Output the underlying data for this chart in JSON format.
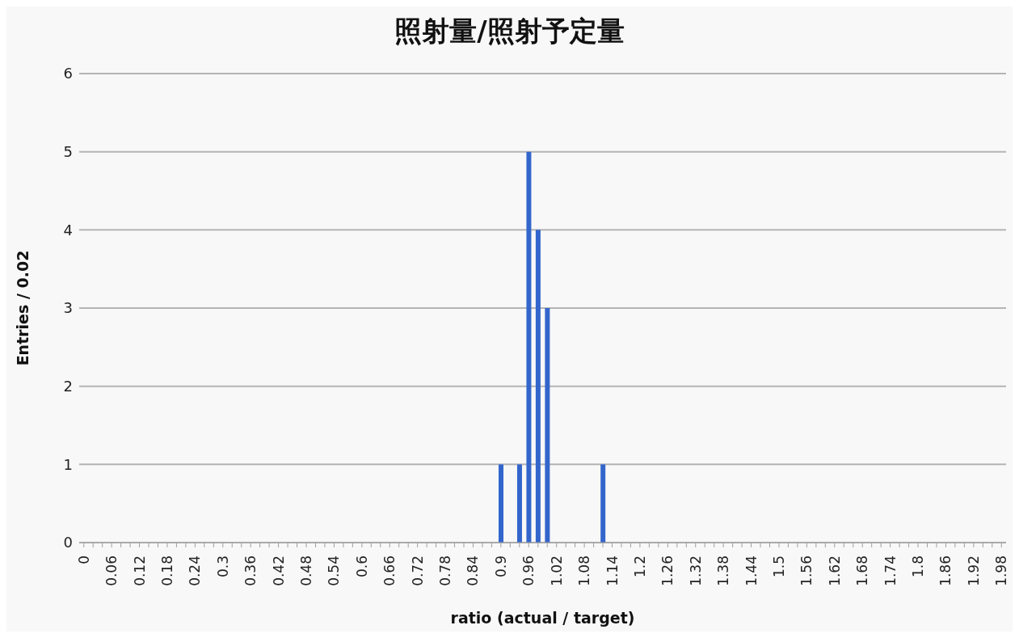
{
  "chart_data": {
    "type": "bar",
    "title": "照射量/照射予定量",
    "xlabel": "ratio (actual / target)",
    "ylabel": "Entries / 0.02",
    "categories": [
      "0",
      null,
      null,
      "0.06",
      null,
      null,
      "0.12",
      null,
      null,
      "0.18",
      null,
      null,
      "0.24",
      null,
      null,
      "0.3",
      null,
      null,
      "0.36",
      null,
      null,
      "0.42",
      null,
      null,
      "0.48",
      null,
      null,
      "0.54",
      null,
      null,
      "0.6",
      null,
      null,
      "0.66",
      null,
      null,
      "0.72",
      null,
      null,
      "0.78",
      null,
      null,
      "0.84",
      null,
      null,
      "0.9",
      null,
      null,
      "0.96",
      null,
      null,
      "1.02",
      null,
      null,
      "1.08",
      null,
      null,
      "1.14",
      null,
      null,
      "1.2",
      null,
      null,
      "1.26",
      null,
      null,
      "1.32",
      null,
      null,
      "1.38",
      null,
      null,
      "1.44",
      null,
      null,
      "1.5",
      null,
      null,
      "1.56",
      null,
      null,
      "1.62",
      null,
      null,
      "1.68",
      null,
      null,
      "1.74",
      null,
      null,
      "1.8",
      null,
      null,
      "1.86",
      null,
      null,
      "1.92",
      null,
      null,
      "1.98"
    ],
    "values": [
      0,
      0,
      0,
      0,
      0,
      0,
      0,
      0,
      0,
      0,
      0,
      0,
      0,
      0,
      0,
      0,
      0,
      0,
      0,
      0,
      0,
      0,
      0,
      0,
      0,
      0,
      0,
      0,
      0,
      0,
      0,
      0,
      0,
      0,
      0,
      0,
      0,
      0,
      0,
      0,
      0,
      0,
      0,
      0,
      0,
      1,
      0,
      1,
      5,
      4,
      3,
      0,
      0,
      0,
      0,
      0,
      1,
      0,
      0,
      0,
      0,
      0,
      0,
      0,
      0,
      0,
      0,
      0,
      0,
      0,
      0,
      0,
      0,
      0,
      0,
      0,
      0,
      0,
      0,
      0,
      0,
      0,
      0,
      0,
      0,
      0,
      0,
      0,
      0,
      0,
      0,
      0,
      0,
      0,
      0,
      0,
      0,
      0,
      0,
      0
    ],
    "color": "#3366cc",
    "ylim": [
      0,
      6
    ],
    "yticks": [
      0,
      1,
      2,
      3,
      4,
      5,
      6
    ],
    "grid": "y",
    "legend": false
  }
}
